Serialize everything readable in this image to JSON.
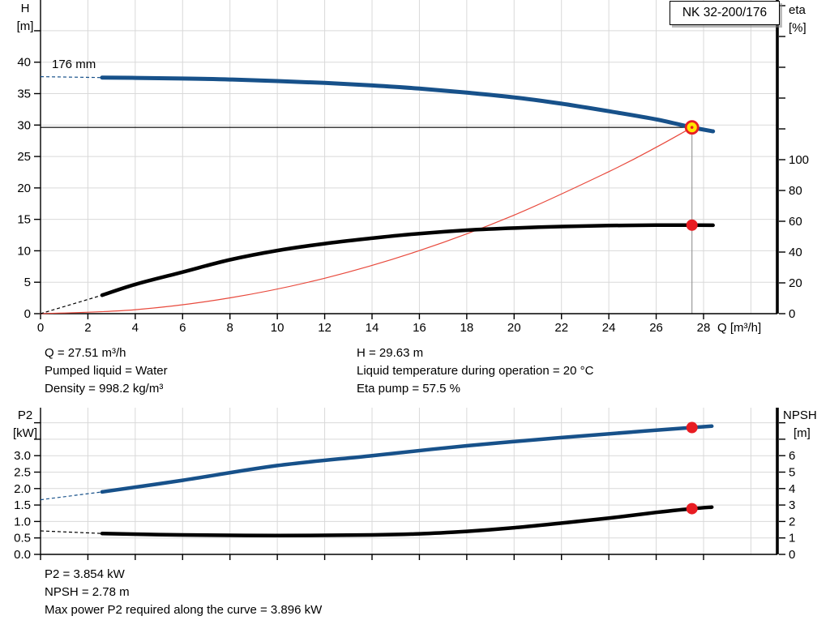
{
  "header": {
    "model": "NK 32-200/176"
  },
  "colors": {
    "curve_blue": "#17518a",
    "curve_black": "#000000",
    "curve_red": "#e8493c",
    "duty_yellow": "#ffe400",
    "duty_red": "#e81c22",
    "grid": "#d9d9d9",
    "duty_vline_gray": "#9a9a9a"
  },
  "details_top": {
    "left": [
      "Q = 27.51 m³/h",
      "Pumped liquid = Water",
      "Density = 998.2 kg/m³"
    ],
    "right": [
      "H = 29.63 m",
      "Liquid temperature during operation = 20 °C",
      "Eta pump = 57.5 %"
    ]
  },
  "details_bottom": [
    "P2 = 3.854 kW",
    "NPSH = 2.78 m",
    "Max power P2 required along the curve = 3.896 kW"
  ],
  "chart_data": [
    {
      "type": "line",
      "title": "NK 32-200/176",
      "impeller_label": "176 mm",
      "x_axis": {
        "label": "Q [m³/h]",
        "min": 0,
        "max": 28,
        "ticks": [
          0,
          2,
          4,
          6,
          8,
          10,
          12,
          14,
          16,
          18,
          20,
          22,
          24,
          26,
          28
        ],
        "labeled": true
      },
      "left_axis": {
        "label": "H",
        "unit": "[m]",
        "min": 0,
        "max": 45,
        "ticks": [
          0,
          5,
          10,
          15,
          20,
          25,
          30,
          35,
          40
        ],
        "extra_ticks": [
          45
        ]
      },
      "right_axis": {
        "label": "eta",
        "unit": "[%]",
        "min": 0,
        "max": 200,
        "ticks": [
          0,
          20,
          40,
          60,
          80,
          100
        ],
        "extra_ticks": [
          120,
          140,
          160,
          180,
          200
        ]
      },
      "grid": {
        "x_step": 2,
        "x_max": 30,
        "y_step": 5,
        "y_max": 45,
        "on": true
      },
      "legend": "none",
      "series": [
        {
          "name": "system-resistance-curve",
          "axis": "left",
          "color_key": "curve_red",
          "width": 1.2,
          "points": [
            [
              0,
              0
            ],
            [
              4,
              0.63
            ],
            [
              8,
              2.51
            ],
            [
              12,
              5.64
            ],
            [
              16,
              10.03
            ],
            [
              20,
              15.68
            ],
            [
              24,
              22.59
            ],
            [
              26,
              26.46
            ],
            [
              27.51,
              29.63
            ]
          ]
        },
        {
          "name": "efficiency-curve",
          "axis": "right",
          "color_key": "curve_black",
          "width": 4.5,
          "dash_lead": [
            [
              0,
              0
            ],
            [
              2.6,
              12
            ]
          ],
          "points": [
            [
              2.6,
              12
            ],
            [
              4,
              19
            ],
            [
              6,
              27
            ],
            [
              8,
              35
            ],
            [
              10,
              41
            ],
            [
              12,
              45.5
            ],
            [
              14,
              49
            ],
            [
              16,
              52
            ],
            [
              18,
              54.2
            ],
            [
              20,
              55.6
            ],
            [
              22,
              56.6
            ],
            [
              24,
              57.2
            ],
            [
              26,
              57.45
            ],
            [
              27.51,
              57.5
            ],
            [
              28.4,
              57.4
            ]
          ]
        },
        {
          "name": "head-curve-176mm",
          "axis": "left",
          "color_key": "curve_blue",
          "width": 5,
          "dash_lead": [
            [
              0,
              37.7
            ],
            [
              2.6,
              37.55
            ]
          ],
          "points": [
            [
              2.6,
              37.55
            ],
            [
              4,
              37.5
            ],
            [
              6,
              37.4
            ],
            [
              8,
              37.25
            ],
            [
              10,
              37.0
            ],
            [
              12,
              36.7
            ],
            [
              14,
              36.3
            ],
            [
              16,
              35.8
            ],
            [
              18,
              35.15
            ],
            [
              20,
              34.4
            ],
            [
              22,
              33.4
            ],
            [
              24,
              32.2
            ],
            [
              26,
              30.9
            ],
            [
              27.51,
              29.63
            ],
            [
              28.4,
              29.0
            ]
          ]
        }
      ],
      "duty_lines": {
        "q": 27.51,
        "h": 29.63
      },
      "markers": [
        {
          "name": "duty-point-head",
          "shape": "ring",
          "x": 27.51,
          "axis": "left",
          "value": 29.63
        },
        {
          "name": "duty-point-efficiency",
          "shape": "dot",
          "x": 27.51,
          "axis": "right",
          "value": 57.5
        }
      ],
      "duty_point": {
        "Q_m3h": 27.51,
        "H_m": 29.63,
        "eta_pct": 57.5
      }
    },
    {
      "type": "line",
      "x_axis": {
        "label": "",
        "min": 0,
        "max": 28,
        "ticks": [
          0,
          2,
          4,
          6,
          8,
          10,
          12,
          14,
          16,
          18,
          20,
          22,
          24,
          26,
          28
        ],
        "labeled": false
      },
      "left_axis": {
        "label": "P2",
        "unit": "[kW]",
        "min": 0,
        "max": 4,
        "ticks": [
          0,
          0.5,
          1,
          1.5,
          2,
          2.5,
          3
        ],
        "tick_labels": [
          "0.0",
          "0.5",
          "1.0",
          "1.5",
          "2.0",
          "2.5",
          "3.0"
        ],
        "extra_ticks": [
          3.5,
          4
        ]
      },
      "right_axis": {
        "label": "NPSH",
        "unit": "[m]",
        "min": 0,
        "max": 8,
        "ticks": [
          0,
          1,
          2,
          3,
          4,
          5,
          6
        ],
        "extra_ticks": [
          7,
          8
        ]
      },
      "grid": {
        "x_step": 2,
        "x_max": 30,
        "y_step": 0.5,
        "y_max": 4,
        "on": true
      },
      "legend": "none",
      "series": [
        {
          "name": "p2-power-curve",
          "axis": "left",
          "color_key": "curve_blue",
          "width": 4.5,
          "dash_lead": [
            [
              0,
              1.66
            ],
            [
              2.6,
              1.9
            ]
          ],
          "points": [
            [
              2.6,
              1.9
            ],
            [
              6,
              2.25
            ],
            [
              10,
              2.7
            ],
            [
              14,
              3.0
            ],
            [
              18,
              3.3
            ],
            [
              22,
              3.55
            ],
            [
              25,
              3.72
            ],
            [
              27.51,
              3.854
            ],
            [
              28.35,
              3.896
            ]
          ]
        },
        {
          "name": "npsh-curve",
          "axis": "right",
          "color_key": "curve_black",
          "width": 4.5,
          "dash_lead": [
            [
              0,
              1.43
            ],
            [
              2.6,
              1.27
            ]
          ],
          "points": [
            [
              2.6,
              1.27
            ],
            [
              6,
              1.18
            ],
            [
              10,
              1.15
            ],
            [
              14,
              1.18
            ],
            [
              16,
              1.25
            ],
            [
              18,
              1.4
            ],
            [
              20,
              1.62
            ],
            [
              22,
              1.9
            ],
            [
              24,
              2.2
            ],
            [
              26,
              2.55
            ],
            [
              27.51,
              2.78
            ],
            [
              28.35,
              2.87
            ]
          ]
        }
      ],
      "markers": [
        {
          "name": "duty-point-p2",
          "shape": "dot",
          "x": 27.51,
          "axis": "left",
          "value": 3.854
        },
        {
          "name": "duty-point-npsh",
          "shape": "dot",
          "x": 27.51,
          "axis": "right",
          "value": 2.78
        }
      ],
      "duty_point": {
        "P2_kW": 3.854,
        "NPSH_m": 2.78,
        "P2_max_kW": 3.896
      }
    }
  ]
}
